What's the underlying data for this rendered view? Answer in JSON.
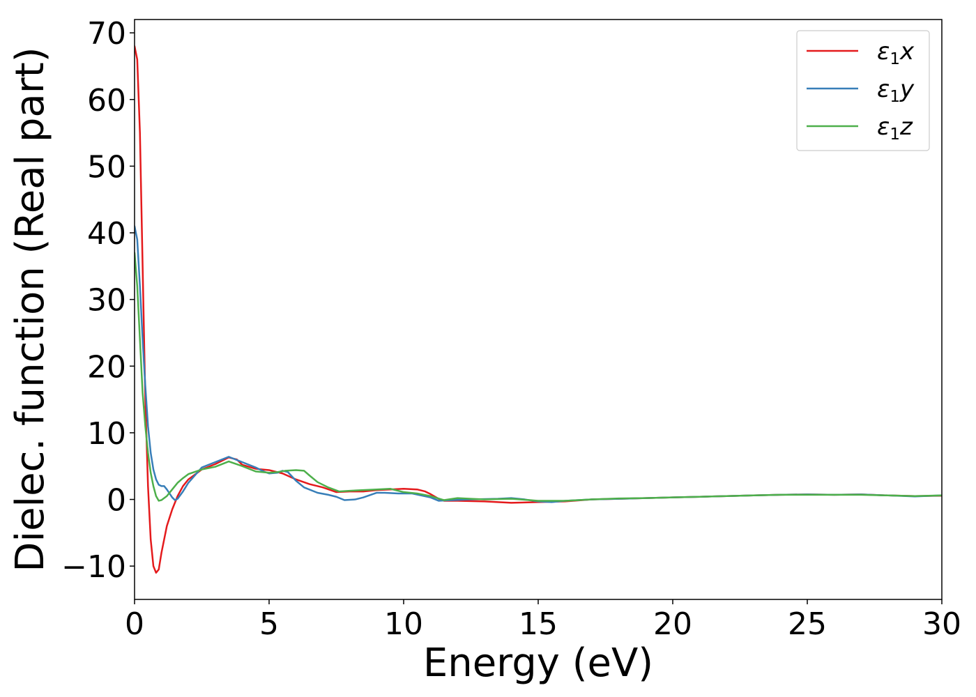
{
  "chart_data": {
    "type": "line",
    "title": "",
    "xlabel": "Energy (eV)",
    "ylabel": "Dielec. function (Real part)",
    "xlim": [
      0,
      30
    ],
    "ylim": [
      -15,
      72
    ],
    "xticks": [
      0,
      5,
      10,
      15,
      20,
      25,
      30
    ],
    "xtick_labels": [
      "0",
      "5",
      "10",
      "15",
      "20",
      "25",
      "30"
    ],
    "yticks": [
      -10,
      0,
      10,
      20,
      30,
      40,
      50,
      60,
      70
    ],
    "ytick_labels": [
      "−10",
      "0",
      "10",
      "20",
      "30",
      "40",
      "50",
      "60",
      "70"
    ],
    "grid": false,
    "legend_position": "top-right",
    "series": [
      {
        "name": "ε₁x",
        "name_base": "ε",
        "name_sub": "1",
        "name_tail": "x",
        "color": "#e41a1c",
        "points": [
          [
            0,
            68
          ],
          [
            0.1,
            66
          ],
          [
            0.2,
            55
          ],
          [
            0.3,
            35
          ],
          [
            0.4,
            15
          ],
          [
            0.5,
            2
          ],
          [
            0.6,
            -6
          ],
          [
            0.7,
            -10
          ],
          [
            0.8,
            -11
          ],
          [
            0.9,
            -10.5
          ],
          [
            1.0,
            -8
          ],
          [
            1.2,
            -4
          ],
          [
            1.4,
            -1.5
          ],
          [
            1.6,
            0.5
          ],
          [
            1.8,
            2
          ],
          [
            2.0,
            3
          ],
          [
            2.5,
            4.5
          ],
          [
            3.0,
            5.3
          ],
          [
            3.5,
            6.3
          ],
          [
            3.8,
            6.0
          ],
          [
            4.0,
            5.2
          ],
          [
            4.5,
            4.6
          ],
          [
            5.0,
            4.4
          ],
          [
            5.5,
            3.9
          ],
          [
            6.0,
            3.0
          ],
          [
            6.5,
            2.3
          ],
          [
            7.0,
            1.8
          ],
          [
            7.5,
            1.1
          ],
          [
            8.0,
            1.2
          ],
          [
            8.5,
            1.2
          ],
          [
            9.0,
            1.4
          ],
          [
            9.5,
            1.5
          ],
          [
            10.0,
            1.6
          ],
          [
            10.5,
            1.5
          ],
          [
            10.8,
            1.2
          ],
          [
            11.0,
            0.8
          ],
          [
            11.3,
            0.1
          ],
          [
            11.5,
            -0.2
          ],
          [
            12.0,
            -0.2
          ],
          [
            13.0,
            -0.3
          ],
          [
            14.0,
            -0.5
          ],
          [
            15.0,
            -0.4
          ],
          [
            16.0,
            -0.3
          ],
          [
            17.0,
            0.0
          ],
          [
            18.0,
            0.1
          ],
          [
            19.0,
            0.2
          ],
          [
            20.0,
            0.3
          ],
          [
            21.0,
            0.4
          ],
          [
            22.0,
            0.5
          ],
          [
            23.0,
            0.6
          ],
          [
            24.0,
            0.7
          ],
          [
            25.0,
            0.75
          ],
          [
            26.0,
            0.7
          ],
          [
            27.0,
            0.75
          ],
          [
            28.0,
            0.6
          ],
          [
            29.0,
            0.5
          ],
          [
            30.0,
            0.55
          ]
        ]
      },
      {
        "name": "ε₁y",
        "name_base": "ε",
        "name_sub": "1",
        "name_tail": "y",
        "color": "#377eb8",
        "points": [
          [
            0,
            41
          ],
          [
            0.1,
            39
          ],
          [
            0.2,
            32
          ],
          [
            0.3,
            24
          ],
          [
            0.4,
            17
          ],
          [
            0.5,
            11
          ],
          [
            0.6,
            7
          ],
          [
            0.7,
            4.5
          ],
          [
            0.8,
            3
          ],
          [
            0.9,
            2.2
          ],
          [
            1.0,
            2
          ],
          [
            1.1,
            2.0
          ],
          [
            1.2,
            1.5
          ],
          [
            1.4,
            0.3
          ],
          [
            1.5,
            -0.1
          ],
          [
            1.6,
            0.1
          ],
          [
            1.8,
            1.2
          ],
          [
            2.0,
            2.5
          ],
          [
            2.5,
            4.8
          ],
          [
            3.0,
            5.6
          ],
          [
            3.5,
            6.4
          ],
          [
            4.0,
            5.6
          ],
          [
            4.5,
            4.8
          ],
          [
            4.8,
            4.2
          ],
          [
            5.0,
            3.9
          ],
          [
            5.3,
            4.0
          ],
          [
            5.5,
            4.3
          ],
          [
            5.7,
            4.1
          ],
          [
            6.0,
            2.8
          ],
          [
            6.3,
            1.8
          ],
          [
            6.8,
            1.0
          ],
          [
            7.2,
            0.7
          ],
          [
            7.5,
            0.4
          ],
          [
            7.8,
            -0.1
          ],
          [
            8.2,
            0.0
          ],
          [
            8.5,
            0.3
          ],
          [
            9.0,
            1.0
          ],
          [
            9.3,
            1.0
          ],
          [
            9.8,
            0.9
          ],
          [
            10.3,
            0.9
          ],
          [
            11.0,
            0.3
          ],
          [
            11.3,
            -0.2
          ],
          [
            11.8,
            -0.1
          ],
          [
            12.5,
            0.0
          ],
          [
            13.5,
            0.1
          ],
          [
            14.0,
            0.2
          ],
          [
            14.5,
            0.0
          ],
          [
            15.0,
            -0.3
          ],
          [
            15.5,
            -0.4
          ],
          [
            16.0,
            -0.2
          ],
          [
            17.0,
            0.0
          ],
          [
            18.0,
            0.1
          ],
          [
            19.0,
            0.2
          ],
          [
            20.0,
            0.3
          ],
          [
            21.0,
            0.4
          ],
          [
            22.0,
            0.5
          ],
          [
            23.0,
            0.6
          ],
          [
            24.0,
            0.7
          ],
          [
            25.0,
            0.75
          ],
          [
            26.0,
            0.7
          ],
          [
            27.0,
            0.75
          ],
          [
            28.0,
            0.6
          ],
          [
            29.0,
            0.45
          ],
          [
            30.0,
            0.6
          ]
        ]
      },
      {
        "name": "ε₁z",
        "name_base": "ε",
        "name_sub": "1",
        "name_tail": "z",
        "color": "#4daf4a",
        "points": [
          [
            0,
            37
          ],
          [
            0.1,
            32
          ],
          [
            0.2,
            24
          ],
          [
            0.3,
            16
          ],
          [
            0.4,
            11
          ],
          [
            0.5,
            7
          ],
          [
            0.6,
            4
          ],
          [
            0.7,
            2
          ],
          [
            0.8,
            0.5
          ],
          [
            0.9,
            -0.2
          ],
          [
            1.0,
            -0.1
          ],
          [
            1.2,
            0.5
          ],
          [
            1.4,
            1.5
          ],
          [
            1.6,
            2.5
          ],
          [
            1.8,
            3.2
          ],
          [
            2.0,
            3.8
          ],
          [
            2.5,
            4.5
          ],
          [
            3.0,
            4.9
          ],
          [
            3.5,
            5.7
          ],
          [
            4.0,
            5.0
          ],
          [
            4.5,
            4.2
          ],
          [
            5.0,
            4.0
          ],
          [
            5.3,
            4.1
          ],
          [
            5.6,
            4.3
          ],
          [
            6.0,
            4.4
          ],
          [
            6.3,
            4.3
          ],
          [
            6.5,
            3.6
          ],
          [
            6.8,
            2.6
          ],
          [
            7.2,
            1.8
          ],
          [
            7.6,
            1.2
          ],
          [
            8.0,
            1.3
          ],
          [
            8.5,
            1.4
          ],
          [
            9.0,
            1.5
          ],
          [
            9.5,
            1.6
          ],
          [
            10.0,
            1.1
          ],
          [
            10.5,
            0.9
          ],
          [
            11.0,
            0.5
          ],
          [
            11.5,
            -0.1
          ],
          [
            12.0,
            0.2
          ],
          [
            12.5,
            0.1
          ],
          [
            13.0,
            0.0
          ],
          [
            14.0,
            0.1
          ],
          [
            15.0,
            -0.2
          ],
          [
            16.0,
            -0.2
          ],
          [
            17.0,
            0.0
          ],
          [
            18.0,
            0.15
          ],
          [
            19.0,
            0.2
          ],
          [
            20.0,
            0.3
          ],
          [
            21.0,
            0.4
          ],
          [
            22.0,
            0.5
          ],
          [
            23.0,
            0.6
          ],
          [
            24.0,
            0.7
          ],
          [
            25.0,
            0.7
          ],
          [
            26.0,
            0.7
          ],
          [
            27.0,
            0.7
          ],
          [
            28.0,
            0.6
          ],
          [
            29.0,
            0.5
          ],
          [
            30.0,
            0.6
          ]
        ]
      }
    ]
  }
}
